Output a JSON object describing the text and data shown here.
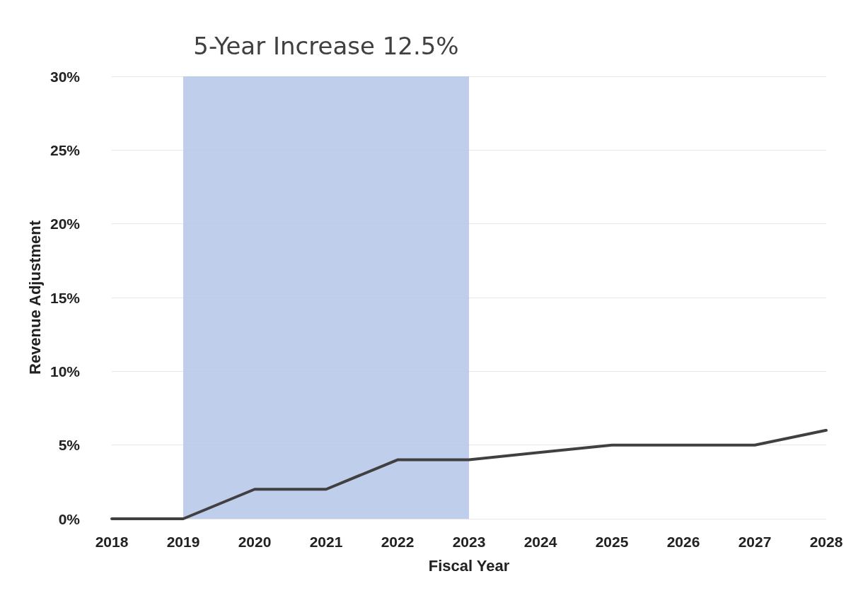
{
  "chart_data": {
    "type": "line",
    "xlabel": "Fiscal Year",
    "ylabel": "Revenue Adjustment",
    "categories": [
      "2018",
      "2019",
      "2020",
      "2021",
      "2022",
      "2023",
      "2024",
      "2025",
      "2026",
      "2027",
      "2028"
    ],
    "series": [
      {
        "color": "#404040",
        "values": [
          0,
          0,
          2,
          2,
          4,
          4,
          4.5,
          5,
          5,
          5,
          6
        ]
      }
    ],
    "ylim": [
      0,
      30
    ],
    "yticks": [
      {
        "value": 0,
        "label": "0%"
      },
      {
        "value": 5,
        "label": "5%"
      },
      {
        "value": 10,
        "label": "10%"
      },
      {
        "value": 15,
        "label": "15%"
      },
      {
        "value": 20,
        "label": "20%"
      },
      {
        "value": 25,
        "label": "25%"
      },
      {
        "value": 30,
        "label": "30%"
      }
    ],
    "bands": [
      {
        "axis": "x",
        "from": "2019",
        "to": "2023",
        "label": "5-Year Increase 12.5%",
        "color": "#b4c6e7"
      }
    ],
    "grid": "y",
    "marker": "none",
    "line_style": "solid"
  }
}
